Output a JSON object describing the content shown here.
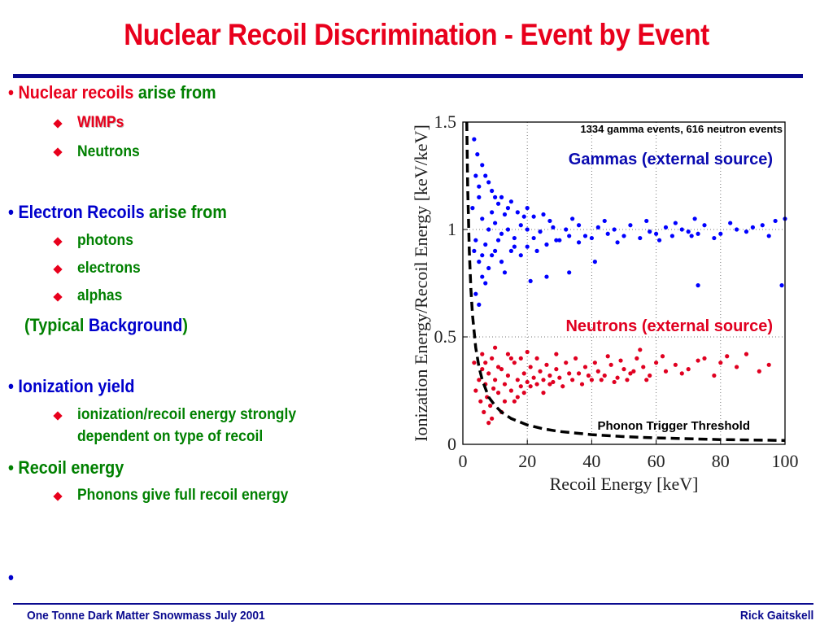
{
  "slide": {
    "title": "Nuclear Recoil Discrimination - Event by Event",
    "footer_left": "One Tonne Dark Matter Snowmass July 2001",
    "footer_right": "Rick Gaitskell"
  },
  "bullets": {
    "nuclear": {
      "prefix": "• ",
      "highlight": "Nuclear recoils",
      "rest": " arise from"
    },
    "nuclear_items": [
      "WIMPs",
      "Neutrons"
    ],
    "electron": {
      "prefix": "• ",
      "highlight": "Electron Recoils",
      "rest": " arise from"
    },
    "electron_items": [
      "photons",
      "electrons",
      "alphas"
    ],
    "typical": {
      "open": "(Typical ",
      "highlight": "Background",
      "close": ")"
    },
    "ionization": "• Ionization yield",
    "ionization_items": [
      "ionization/recoil energy strongly",
      "dependent on type of recoil"
    ],
    "recoil": "• Recoil energy",
    "recoil_items": [
      "Phonons give full recoil energy"
    ],
    "empty_bullet": "•"
  },
  "chart_data": {
    "type": "scatter",
    "xlabel": "Recoil Energy [keV]",
    "ylabel": "Ionization Energy/Recoil Energy [keV/keV]",
    "xlim": [
      0,
      100
    ],
    "ylim": [
      0,
      1.5
    ],
    "xticks": [
      "0",
      "20",
      "40",
      "60",
      "80",
      "100"
    ],
    "yticks": [
      "0",
      "0.5",
      "1",
      "1.5"
    ],
    "grid": "dotted",
    "annotations": {
      "events": "1334 gamma events, 616 neutron events",
      "gammas": "Gammas (external source)",
      "neutrons": "Neutrons (external source)",
      "threshold": "Phonon Trigger Threshold"
    },
    "colors": {
      "gamma": "#0000ff",
      "neutron": "#e00020",
      "threshold": "#000000"
    },
    "series": [
      {
        "name": "Gammas (external source)",
        "color": "#0000ff",
        "points": [
          [
            3.5,
            1.42
          ],
          [
            4.5,
            1.35
          ],
          [
            5,
            1.2
          ],
          [
            6,
            1.3
          ],
          [
            7,
            1.25
          ],
          [
            8,
            1.22
          ],
          [
            9,
            1.18
          ],
          [
            10,
            1.15
          ],
          [
            11,
            1.12
          ],
          [
            12,
            1.15
          ],
          [
            14,
            1.1
          ],
          [
            15,
            1.13
          ],
          [
            17,
            1.08
          ],
          [
            20,
            1.1
          ],
          [
            22,
            1.06
          ],
          [
            25,
            1.07
          ],
          [
            3,
            1.1
          ],
          [
            4,
            0.95
          ],
          [
            5,
            0.85
          ],
          [
            6,
            0.78
          ],
          [
            7,
            0.75
          ],
          [
            8,
            0.82
          ],
          [
            9,
            0.88
          ],
          [
            10,
            0.9
          ],
          [
            12,
            0.85
          ],
          [
            13,
            0.8
          ],
          [
            15,
            0.9
          ],
          [
            18,
            0.88
          ],
          [
            20,
            0.92
          ],
          [
            23,
            0.9
          ],
          [
            26,
            0.93
          ],
          [
            30,
            0.95
          ],
          [
            33,
            0.97
          ],
          [
            36,
            0.94
          ],
          [
            40,
            0.96
          ],
          [
            45,
            0.98
          ],
          [
            50,
            0.97
          ],
          [
            55,
            0.96
          ],
          [
            60,
            0.98
          ],
          [
            65,
            0.97
          ],
          [
            70,
            0.99
          ],
          [
            75,
            1.02
          ],
          [
            80,
            0.98
          ],
          [
            85,
            1.0
          ],
          [
            90,
            1.01
          ],
          [
            95,
            0.97
          ],
          [
            100,
            1.05
          ],
          [
            99,
            0.74
          ],
          [
            72,
            1.05
          ],
          [
            78,
            0.96
          ],
          [
            83,
            1.03
          ],
          [
            88,
            0.99
          ],
          [
            93,
            1.02
          ],
          [
            97,
            1.04
          ],
          [
            4,
            0.7
          ],
          [
            5,
            0.65
          ],
          [
            6,
            1.05
          ],
          [
            8,
            1.0
          ],
          [
            10,
            1.03
          ],
          [
            12,
            0.98
          ],
          [
            14,
            1.0
          ],
          [
            16,
            0.96
          ],
          [
            18,
            1.02
          ],
          [
            20,
            1.0
          ],
          [
            24,
            0.99
          ],
          [
            28,
            1.01
          ],
          [
            32,
            1.0
          ],
          [
            36,
            1.02
          ],
          [
            42,
            1.01
          ],
          [
            47,
            1.0
          ],
          [
            52,
            1.02
          ],
          [
            58,
            0.99
          ],
          [
            63,
            1.01
          ],
          [
            68,
            1.0
          ],
          [
            73,
            0.98
          ],
          [
            57,
            1.04
          ],
          [
            61,
            0.95
          ],
          [
            66,
            1.03
          ],
          [
            71,
            0.97
          ],
          [
            48,
            0.94
          ],
          [
            44,
            1.04
          ],
          [
            38,
            0.97
          ],
          [
            34,
            1.05
          ],
          [
            29,
            0.95
          ],
          [
            27,
            1.04
          ],
          [
            22,
            0.96
          ],
          [
            19,
            1.06
          ],
          [
            16,
            0.92
          ],
          [
            13,
            1.07
          ],
          [
            11,
            0.95
          ],
          [
            9,
            1.08
          ],
          [
            7,
            0.93
          ],
          [
            6,
            0.88
          ],
          [
            5,
            1.15
          ],
          [
            4,
            1.25
          ],
          [
            3.5,
            0.9
          ],
          [
            73,
            0.74
          ],
          [
            21,
            0.76
          ],
          [
            33,
            0.8
          ],
          [
            41,
            0.85
          ],
          [
            26,
            0.78
          ]
        ]
      },
      {
        "name": "Neutrons (external source)",
        "color": "#e00020",
        "points": [
          [
            3.5,
            0.38
          ],
          [
            4,
            0.25
          ],
          [
            5,
            0.3
          ],
          [
            5.5,
            0.2
          ],
          [
            6,
            0.35
          ],
          [
            6.5,
            0.15
          ],
          [
            7,
            0.28
          ],
          [
            7.5,
            0.22
          ],
          [
            8,
            0.33
          ],
          [
            8.5,
            0.18
          ],
          [
            9,
            0.4
          ],
          [
            9.5,
            0.26
          ],
          [
            10,
            0.3
          ],
          [
            11,
            0.24
          ],
          [
            12,
            0.35
          ],
          [
            13,
            0.28
          ],
          [
            14,
            0.32
          ],
          [
            15,
            0.25
          ],
          [
            16,
            0.38
          ],
          [
            17,
            0.3
          ],
          [
            18,
            0.27
          ],
          [
            19,
            0.33
          ],
          [
            20,
            0.29
          ],
          [
            21,
            0.36
          ],
          [
            22,
            0.31
          ],
          [
            23,
            0.28
          ],
          [
            24,
            0.34
          ],
          [
            25,
            0.3
          ],
          [
            26,
            0.37
          ],
          [
            27,
            0.32
          ],
          [
            28,
            0.29
          ],
          [
            29,
            0.35
          ],
          [
            30,
            0.31
          ],
          [
            32,
            0.38
          ],
          [
            34,
            0.3
          ],
          [
            36,
            0.33
          ],
          [
            38,
            0.36
          ],
          [
            40,
            0.3
          ],
          [
            42,
            0.34
          ],
          [
            44,
            0.32
          ],
          [
            46,
            0.37
          ],
          [
            48,
            0.31
          ],
          [
            50,
            0.35
          ],
          [
            52,
            0.33
          ],
          [
            54,
            0.4
          ],
          [
            56,
            0.36
          ],
          [
            58,
            0.32
          ],
          [
            60,
            0.38
          ],
          [
            63,
            0.34
          ],
          [
            66,
            0.37
          ],
          [
            70,
            0.35
          ],
          [
            75,
            0.4
          ],
          [
            80,
            0.38
          ],
          [
            85,
            0.36
          ],
          [
            88,
            0.42
          ],
          [
            92,
            0.34
          ],
          [
            95,
            0.37
          ],
          [
            6,
            0.42
          ],
          [
            8,
            0.1
          ],
          [
            10,
            0.45
          ],
          [
            12,
            0.15
          ],
          [
            14,
            0.42
          ],
          [
            16,
            0.2
          ],
          [
            18,
            0.4
          ],
          [
            20,
            0.43
          ],
          [
            7,
            0.38
          ],
          [
            9,
            0.12
          ],
          [
            11,
            0.36
          ],
          [
            13,
            0.2
          ],
          [
            15,
            0.4
          ],
          [
            17,
            0.22
          ],
          [
            19,
            0.24
          ],
          [
            21,
            0.27
          ],
          [
            23,
            0.4
          ],
          [
            25,
            0.24
          ],
          [
            27,
            0.28
          ],
          [
            29,
            0.42
          ],
          [
            31,
            0.27
          ],
          [
            33,
            0.33
          ],
          [
            35,
            0.4
          ],
          [
            37,
            0.28
          ],
          [
            39,
            0.32
          ],
          [
            41,
            0.38
          ],
          [
            43,
            0.3
          ],
          [
            45,
            0.41
          ],
          [
            47,
            0.29
          ],
          [
            49,
            0.39
          ],
          [
            51,
            0.3
          ],
          [
            53,
            0.34
          ],
          [
            55,
            0.44
          ],
          [
            57,
            0.3
          ],
          [
            62,
            0.41
          ],
          [
            68,
            0.33
          ],
          [
            73,
            0.39
          ],
          [
            78,
            0.32
          ],
          [
            82,
            0.41
          ]
        ]
      }
    ],
    "threshold_curve": {
      "name": "Phonon Trigger Threshold",
      "x": [
        1.2,
        1.5,
        2,
        2.5,
        3,
        4,
        5,
        6,
        8,
        10,
        12,
        15,
        20,
        25,
        30,
        40,
        50,
        60,
        70,
        80,
        90,
        100
      ],
      "y": [
        1.5,
        1.2,
        0.9,
        0.72,
        0.6,
        0.45,
        0.36,
        0.3,
        0.22,
        0.18,
        0.15,
        0.12,
        0.09,
        0.072,
        0.06,
        0.045,
        0.036,
        0.03,
        0.026,
        0.022,
        0.02,
        0.018
      ]
    }
  }
}
